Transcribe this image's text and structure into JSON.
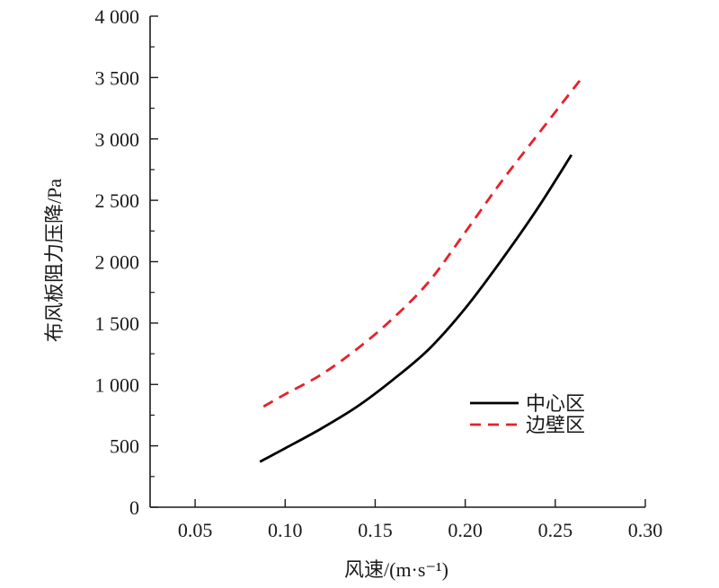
{
  "chart_data": {
    "type": "line",
    "xlabel": "风速/(m·s⁻¹)",
    "ylabel": "布风板阻力压降/Pa",
    "xlim": [
      0.025,
      0.3
    ],
    "ylim": [
      0,
      4000
    ],
    "x_ticks": [
      {
        "value": 0.05,
        "label": "0.05"
      },
      {
        "value": 0.1,
        "label": "0.10"
      },
      {
        "value": 0.15,
        "label": "0.15"
      },
      {
        "value": 0.2,
        "label": "0.20"
      },
      {
        "value": 0.25,
        "label": "0.25"
      },
      {
        "value": 0.3,
        "label": "0.30"
      }
    ],
    "y_ticks": [
      {
        "value": 0,
        "label": "0"
      },
      {
        "value": 500,
        "label": "500"
      },
      {
        "value": 1000,
        "label": "1 000"
      },
      {
        "value": 1500,
        "label": "1 500"
      },
      {
        "value": 2000,
        "label": "2 000"
      },
      {
        "value": 2500,
        "label": "2 500"
      },
      {
        "value": 3000,
        "label": "3 000"
      },
      {
        "value": 3500,
        "label": "3 500"
      },
      {
        "value": 4000,
        "label": "4 000"
      }
    ],
    "grid": false,
    "legend_position": "right-middle",
    "series": [
      {
        "name": "中心区",
        "color": "#000000",
        "style": "solid",
        "x": [
          0.086,
          0.1,
          0.12,
          0.14,
          0.16,
          0.18,
          0.2,
          0.22,
          0.24,
          0.259
        ],
        "y": [
          370,
          480,
          640,
          820,
          1040,
          1290,
          1620,
          2010,
          2430,
          2870
        ]
      },
      {
        "name": "边壁区",
        "color": "#e8202a",
        "style": "dashed",
        "x": [
          0.088,
          0.1,
          0.12,
          0.14,
          0.16,
          0.18,
          0.2,
          0.22,
          0.24,
          0.266
        ],
        "y": [
          820,
          920,
          1080,
          1290,
          1540,
          1840,
          2240,
          2650,
          3030,
          3520
        ]
      }
    ]
  }
}
